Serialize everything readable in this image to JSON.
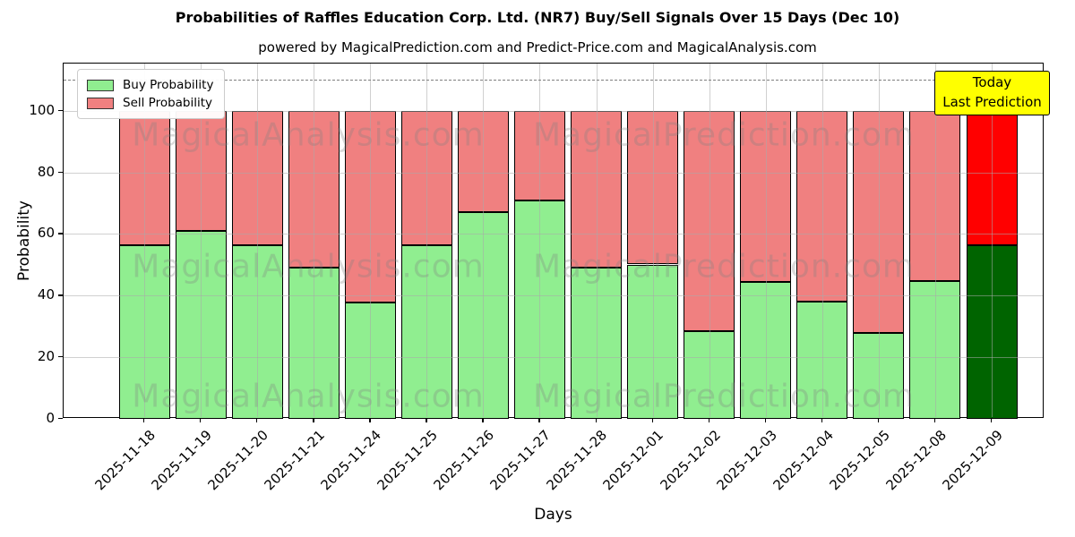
{
  "title": "Probabilities of Raffles Education Corp. Ltd. (NR7) Buy/Sell Signals Over 15 Days (Dec 10)",
  "subtitle": "powered by MagicalPrediction.com and Predict-Price.com and MagicalAnalysis.com",
  "legend": {
    "buy_label": "Buy Probability",
    "sell_label": "Sell Probability"
  },
  "annotation": {
    "line1": "Today",
    "line2": "Last Prediction"
  },
  "axes": {
    "xlabel": "Days",
    "ylabel": "Probability",
    "yticks": [
      0,
      20,
      40,
      60,
      80,
      100
    ],
    "ylim": [
      0,
      115.3
    ],
    "dashed_line_y": 110,
    "grid": true
  },
  "colors": {
    "buy": "#90EE90",
    "sell": "#F08080",
    "today_buy": "#006400",
    "today_sell": "#FF0000",
    "annotation_bg": "#FFFF00",
    "grid": "#aaaaaa",
    "dashed_line": "#7f7f7f",
    "watermark": "rgba(128,128,128,0.30)"
  },
  "watermarks": [
    "MagicalAnalysis.com",
    "MagicalPrediction.com"
  ],
  "chart_data": {
    "type": "bar",
    "stacked": true,
    "title": "Probabilities of Raffles Education Corp. Ltd. (NR7) Buy/Sell Signals Over 15 Days (Dec 10)",
    "xlabel": "Days",
    "ylabel": "Probability",
    "legend_position": "upper-left",
    "categories": [
      "2025-11-18",
      "2025-11-19",
      "2025-11-20",
      "2025-11-21",
      "2025-11-24",
      "2025-11-25",
      "2025-11-26",
      "2025-11-27",
      "2025-11-28",
      "2025-12-01",
      "2025-12-02",
      "2025-12-03",
      "2025-12-04",
      "2025-12-05",
      "2025-12-08",
      "2025-12-09"
    ],
    "series": [
      {
        "name": "Buy Probability",
        "values": [
          56.4,
          61.0,
          56.4,
          49.0,
          37.7,
          56.4,
          67.2,
          70.8,
          49.1,
          50.1,
          28.4,
          44.3,
          38.0,
          28.0,
          44.7,
          56.4
        ]
      },
      {
        "name": "Sell Probability",
        "values": [
          43.6,
          39.0,
          43.6,
          51.0,
          62.3,
          43.6,
          32.8,
          29.2,
          50.9,
          49.9,
          71.6,
          55.7,
          62.0,
          72.0,
          55.3,
          43.6
        ]
      }
    ],
    "today_index": 15,
    "bar_total": 100
  }
}
